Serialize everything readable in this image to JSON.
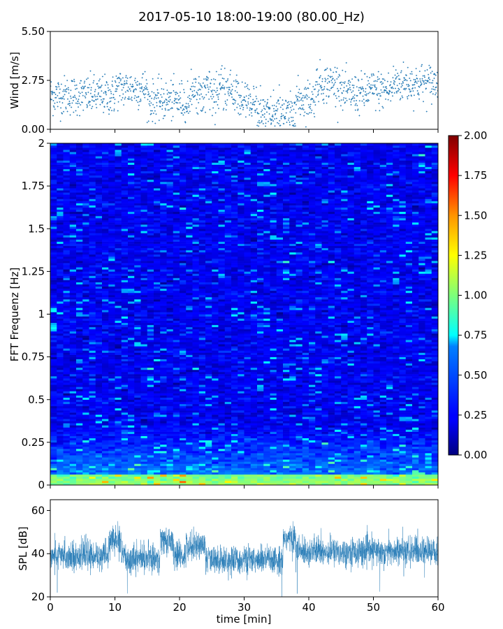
{
  "title": "2017-05-10 18:00-19:00 (80.00_Hz)",
  "chart_data": [
    {
      "type": "scatter",
      "ylabel": "Wind [m/s]",
      "ylim": [
        0,
        5.5
      ],
      "yticks": [
        "0.00",
        "2.75",
        "5.50"
      ],
      "xlim": [
        0,
        60
      ],
      "marker_color": "#1f77b4",
      "grid": false,
      "description_series": "wind speed, ~3600 samples",
      "segments": [
        {
          "x_start": 0,
          "x_end": 10,
          "mean": 1.9
        },
        {
          "x_start": 10,
          "x_end": 15,
          "mean": 2.3
        },
        {
          "x_start": 15,
          "x_end": 22,
          "mean": 1.6
        },
        {
          "x_start": 22,
          "x_end": 29,
          "mean": 2.1
        },
        {
          "x_start": 29,
          "x_end": 32,
          "mean": 1.6
        },
        {
          "x_start": 32,
          "x_end": 38,
          "mean": 0.8
        },
        {
          "x_start": 38,
          "x_end": 41,
          "mean": 1.7
        },
        {
          "x_start": 41,
          "x_end": 45,
          "mean": 2.6
        },
        {
          "x_start": 45,
          "x_end": 49,
          "mean": 2.0
        },
        {
          "x_start": 49,
          "x_end": 53,
          "mean": 2.2
        },
        {
          "x_start": 53,
          "x_end": 60,
          "mean": 2.6
        }
      ]
    },
    {
      "type": "heatmap",
      "ylabel": "FFT Frequenz [Hz]",
      "ylim": [
        0,
        2
      ],
      "yticks": [
        "0",
        "0.25",
        "0.5",
        "0.75",
        "1",
        "1.25",
        "1.5",
        "1.75",
        "2"
      ],
      "xlim": [
        0,
        60
      ],
      "colormap": "jet",
      "colorbar_range": [
        0,
        2
      ],
      "colorbar_ticks": [
        "0.00",
        "0.25",
        "0.50",
        "0.75",
        "1.00",
        "1.25",
        "1.50",
        "1.75",
        "2.00"
      ]
    },
    {
      "type": "line",
      "ylabel": "SPL [dB]",
      "xlabel": "time [min]",
      "ylim": [
        20,
        65
      ],
      "yticks": [
        "20",
        "40",
        "60"
      ],
      "xlim": [
        0,
        60
      ],
      "xticks": [
        "0",
        "10",
        "20",
        "30",
        "40",
        "50",
        "60"
      ],
      "line_color": "#1f77b4",
      "segments": [
        {
          "x_start": 0,
          "x_end": 9,
          "mean": 39
        },
        {
          "x_start": 9,
          "x_end": 11,
          "mean": 46
        },
        {
          "x_start": 11,
          "x_end": 17,
          "mean": 38
        },
        {
          "x_start": 17,
          "x_end": 19,
          "mean": 46
        },
        {
          "x_start": 19,
          "x_end": 21,
          "mean": 39
        },
        {
          "x_start": 21,
          "x_end": 24,
          "mean": 44
        },
        {
          "x_start": 24,
          "x_end": 36,
          "mean": 37
        },
        {
          "x_start": 36,
          "x_end": 38,
          "mean": 47
        },
        {
          "x_start": 38,
          "x_end": 60,
          "mean": 41
        }
      ]
    }
  ]
}
